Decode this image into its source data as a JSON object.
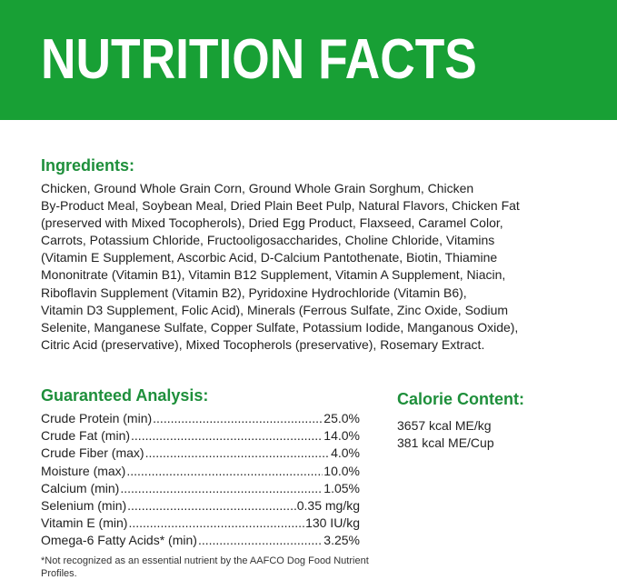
{
  "header": {
    "title": "NUTRITION FACTS",
    "bg_color": "#18a035"
  },
  "ingredients": {
    "heading": "Ingredients:",
    "lines": [
      "Chicken, Ground Whole Grain Corn, Ground Whole Grain Sorghum, Chicken",
      "By-Product Meal, Soybean Meal, Dried Plain Beet Pulp, Natural Flavors, Chicken Fat",
      "(preserved with Mixed Tocopherols), Dried Egg Product, Flaxseed, Caramel Color,",
      "Carrots, Potassium Chloride, Fructooligosaccharides, Choline Chloride, Vitamins",
      "(Vitamin E Supplement, Ascorbic Acid, D-Calcium Pantothenate, Biotin, Thiamine",
      "Mononitrate (Vitamin B1), Vitamin B12 Supplement, Vitamin A Supplement, Niacin,",
      "Riboflavin Supplement (Vitamin B2), Pyridoxine Hydrochloride (Vitamin B6),",
      "Vitamin D3 Supplement, Folic Acid), Minerals (Ferrous Sulfate, Zinc Oxide, Sodium",
      "Selenite, Manganese Sulfate, Copper Sulfate, Potassium Iodide, Manganous Oxide),",
      "Citric Acid (preservative), Mixed Tocopherols (preservative), Rosemary Extract."
    ]
  },
  "analysis": {
    "heading": "Guaranteed Analysis:",
    "rows": [
      {
        "label": "Crude Protein (min)",
        "value": "25.0%"
      },
      {
        "label": "Crude Fat (min)",
        "value": "14.0%"
      },
      {
        "label": "Crude Fiber (max)",
        "value": "4.0%"
      },
      {
        "label": "Moisture (max)",
        "value": "10.0%"
      },
      {
        "label": "Calcium (min)",
        "value": "1.05%"
      },
      {
        "label": "Selenium (min)",
        "value": "0.35 mg/kg"
      },
      {
        "label": "Vitamin E (min)",
        "value": "130 IU/kg"
      },
      {
        "label": "Omega-6 Fatty Acids* (min)",
        "value": "3.25%"
      }
    ],
    "footnote": "*Not recognized as an essential nutrient by the AAFCO Dog Food Nutrient Profiles."
  },
  "calorie": {
    "heading": "Calorie Content:",
    "lines": [
      "3657 kcal ME/kg",
      "381 kcal ME/Cup"
    ]
  },
  "colors": {
    "heading_green": "#1e8f3b"
  }
}
